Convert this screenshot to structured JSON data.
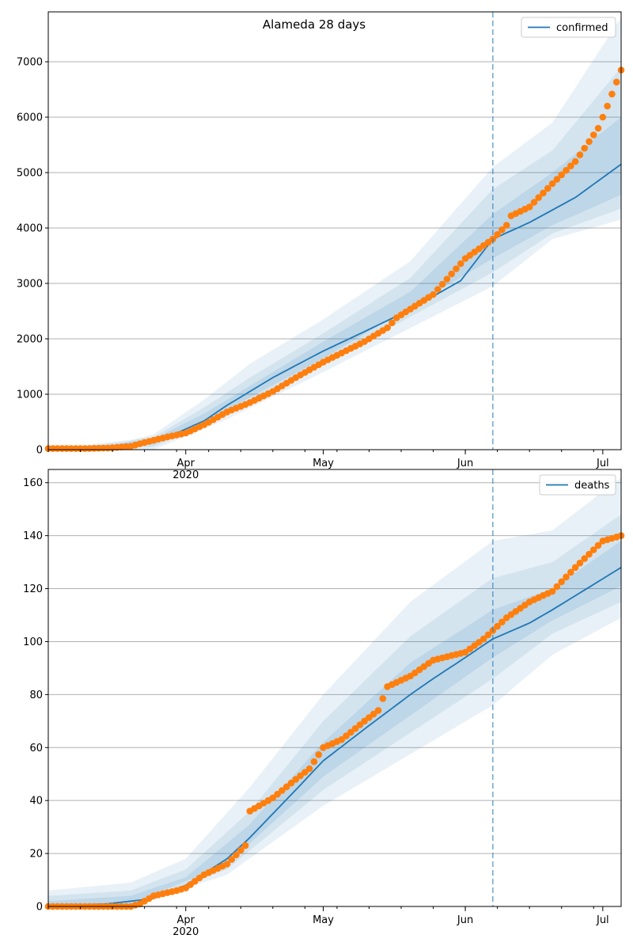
{
  "colors": {
    "band": "#1f77b4",
    "line": "#1f77b4",
    "points": "#ff7f0e",
    "vline": "#1f77b4",
    "grid": "#b0b0b0"
  },
  "chart_data": [
    {
      "type": "line",
      "title": "Alameda 28 days",
      "legend": {
        "label": "confirmed",
        "placement": "top-right"
      },
      "xlabel": "",
      "ylabel": "",
      "grid": "y",
      "xlim": [
        "2020-03-02",
        "2020-07-05"
      ],
      "ylim": [
        0,
        7900
      ],
      "yticks": [
        0,
        1000,
        2000,
        3000,
        4000,
        5000,
        6000,
        7000
      ],
      "xticks": [
        {
          "date": "2020-04-01",
          "label": "Apr",
          "sublabel": "2020"
        },
        {
          "date": "2020-05-01",
          "label": "May",
          "sublabel": ""
        },
        {
          "date": "2020-06-01",
          "label": "Jun",
          "sublabel": ""
        },
        {
          "date": "2020-07-01",
          "label": "Jul",
          "sublabel": ""
        }
      ],
      "vline_date": "2020-06-07",
      "series": [
        {
          "name": "confirmed",
          "kind": "model-median",
          "points": [
            [
              "2020-03-02",
              0
            ],
            [
              "2020-03-15",
              10
            ],
            [
              "2020-03-20",
              50
            ],
            [
              "2020-03-25",
              150
            ],
            [
              "2020-03-30",
              300
            ],
            [
              "2020-04-05",
              520
            ],
            [
              "2020-04-10",
              800
            ],
            [
              "2020-04-15",
              1050
            ],
            [
              "2020-04-20",
              1300
            ],
            [
              "2020-04-25",
              1520
            ],
            [
              "2020-05-01",
              1780
            ],
            [
              "2020-05-10",
              2130
            ],
            [
              "2020-05-20",
              2530
            ],
            [
              "2020-05-31",
              3050
            ],
            [
              "2020-06-07",
              3800
            ],
            [
              "2020-06-15",
              4100
            ],
            [
              "2020-06-25",
              4550
            ],
            [
              "2020-07-05",
              5150
            ]
          ]
        },
        {
          "name": "observed",
          "kind": "observed",
          "points": [
            [
              "2020-03-02",
              20
            ],
            [
              "2020-03-10",
              20
            ],
            [
              "2020-03-15",
              30
            ],
            [
              "2020-03-20",
              60
            ],
            [
              "2020-03-23",
              130
            ],
            [
              "2020-03-28",
              230
            ],
            [
              "2020-04-01",
              300
            ],
            [
              "2020-04-05",
              450
            ],
            [
              "2020-04-10",
              680
            ],
            [
              "2020-04-15",
              850
            ],
            [
              "2020-04-20",
              1050
            ],
            [
              "2020-04-25",
              1300
            ],
            [
              "2020-05-01",
              1580
            ],
            [
              "2020-05-10",
              1950
            ],
            [
              "2020-05-15",
              2200
            ],
            [
              "2020-05-17",
              2380
            ],
            [
              "2020-05-25",
              2800
            ],
            [
              "2020-06-01",
              3450
            ],
            [
              "2020-06-07",
              3800
            ],
            [
              "2020-06-10",
              4050
            ],
            [
              "2020-06-11",
              4220
            ],
            [
              "2020-06-15",
              4380
            ],
            [
              "2020-06-20",
              4800
            ],
            [
              "2020-06-25",
              5200
            ],
            [
              "2020-06-30",
              5800
            ],
            [
              "2020-07-02",
              6200
            ],
            [
              "2020-07-05",
              6850
            ]
          ]
        }
      ],
      "bands": [
        {
          "level": "outer",
          "lower": [
            [
              "2020-03-02",
              0
            ],
            [
              "2020-03-25",
              0
            ],
            [
              "2020-04-10",
              550
            ],
            [
              "2020-05-01",
              1400
            ],
            [
              "2020-06-07",
              2950
            ],
            [
              "2020-06-20",
              3800
            ],
            [
              "2020-07-05",
              4150
            ]
          ],
          "upper": [
            [
              "2020-03-02",
              0
            ],
            [
              "2020-03-15",
              40
            ],
            [
              "2020-03-25",
              280
            ],
            [
              "2020-04-05",
              900
            ],
            [
              "2020-04-15",
              1550
            ],
            [
              "2020-05-01",
              2350
            ],
            [
              "2020-05-20",
              3400
            ],
            [
              "2020-06-07",
              5100
            ],
            [
              "2020-06-20",
              5900
            ],
            [
              "2020-07-05",
              7800
            ]
          ]
        },
        {
          "level": "middle",
          "lower": [
            [
              "2020-03-02",
              0
            ],
            [
              "2020-03-25",
              50
            ],
            [
              "2020-04-10",
              650
            ],
            [
              "2020-05-01",
              1550
            ],
            [
              "2020-06-07",
              3200
            ],
            [
              "2020-06-20",
              3900
            ],
            [
              "2020-07-05",
              4350
            ]
          ],
          "upper": [
            [
              "2020-03-02",
              0
            ],
            [
              "2020-03-25",
              230
            ],
            [
              "2020-04-05",
              760
            ],
            [
              "2020-04-15",
              1300
            ],
            [
              "2020-05-01",
              2100
            ],
            [
              "2020-05-20",
              3100
            ],
            [
              "2020-06-07",
              4700
            ],
            [
              "2020-06-20",
              5400
            ],
            [
              "2020-07-05",
              6900
            ]
          ]
        },
        {
          "level": "inner",
          "lower": [
            [
              "2020-03-02",
              0
            ],
            [
              "2020-03-25",
              90
            ],
            [
              "2020-04-10",
              720
            ],
            [
              "2020-05-01",
              1650
            ],
            [
              "2020-06-07",
              3450
            ],
            [
              "2020-06-20",
              4050
            ],
            [
              "2020-07-05",
              4600
            ]
          ],
          "upper": [
            [
              "2020-03-02",
              0
            ],
            [
              "2020-03-25",
              190
            ],
            [
              "2020-04-05",
              650
            ],
            [
              "2020-04-15",
              1150
            ],
            [
              "2020-05-01",
              1950
            ],
            [
              "2020-05-20",
              2850
            ],
            [
              "2020-06-07",
              4250
            ],
            [
              "2020-06-20",
              5000
            ],
            [
              "2020-07-05",
              6000
            ]
          ]
        }
      ]
    },
    {
      "type": "line",
      "title": "",
      "legend": {
        "label": "deaths",
        "placement": "top-right"
      },
      "xlabel": "",
      "ylabel": "",
      "grid": "y",
      "xlim": [
        "2020-03-02",
        "2020-07-05"
      ],
      "ylim": [
        0,
        165
      ],
      "yticks": [
        0,
        20,
        40,
        60,
        80,
        100,
        120,
        140,
        160
      ],
      "xticks": [
        {
          "date": "2020-04-01",
          "label": "Apr",
          "sublabel": "2020"
        },
        {
          "date": "2020-05-01",
          "label": "May",
          "sublabel": ""
        },
        {
          "date": "2020-06-01",
          "label": "Jun",
          "sublabel": ""
        },
        {
          "date": "2020-07-01",
          "label": "Jul",
          "sublabel": ""
        }
      ],
      "vline_date": "2020-06-07",
      "series": [
        {
          "name": "deaths",
          "kind": "model-median",
          "points": [
            [
              "2020-03-02",
              0
            ],
            [
              "2020-03-15",
              1
            ],
            [
              "2020-03-20",
              2
            ],
            [
              "2020-03-25",
              3
            ],
            [
              "2020-04-01",
              8
            ],
            [
              "2020-04-10",
              18
            ],
            [
              "2020-04-15",
              26
            ],
            [
              "2020-04-20",
              35
            ],
            [
              "2020-04-25",
              44
            ],
            [
              "2020-05-01",
              55
            ],
            [
              "2020-05-10",
              67
            ],
            [
              "2020-05-20",
              80
            ],
            [
              "2020-05-25",
              86
            ],
            [
              "2020-06-01",
              94
            ],
            [
              "2020-06-07",
              101
            ],
            [
              "2020-06-15",
              107
            ],
            [
              "2020-06-20",
              112
            ],
            [
              "2020-07-05",
              128
            ]
          ]
        },
        {
          "name": "observed",
          "kind": "observed",
          "points": [
            [
              "2020-03-02",
              0
            ],
            [
              "2020-03-20",
              0
            ],
            [
              "2020-03-22",
              1
            ],
            [
              "2020-03-25",
              4
            ],
            [
              "2020-03-30",
              6
            ],
            [
              "2020-04-01",
              7
            ],
            [
              "2020-04-05",
              12
            ],
            [
              "2020-04-10",
              16
            ],
            [
              "2020-04-14",
              23
            ],
            [
              "2020-04-15",
              36
            ],
            [
              "2020-04-20",
              41
            ],
            [
              "2020-04-25",
              48
            ],
            [
              "2020-04-28",
              52
            ],
            [
              "2020-05-01",
              60
            ],
            [
              "2020-05-05",
              63
            ],
            [
              "2020-05-10",
              70
            ],
            [
              "2020-05-13",
              74
            ],
            [
              "2020-05-15",
              83
            ],
            [
              "2020-05-20",
              87
            ],
            [
              "2020-05-25",
              93
            ],
            [
              "2020-06-01",
              96
            ],
            [
              "2020-06-05",
              101
            ],
            [
              "2020-06-10",
              109
            ],
            [
              "2020-06-15",
              115
            ],
            [
              "2020-06-20",
              119
            ],
            [
              "2020-06-25",
              128
            ],
            [
              "2020-07-01",
              138
            ],
            [
              "2020-07-05",
              140
            ]
          ]
        }
      ],
      "bands": [
        {
          "level": "outer",
          "lower": [
            [
              "2020-03-02",
              0
            ],
            [
              "2020-03-20",
              0
            ],
            [
              "2020-04-10",
              12
            ],
            [
              "2020-05-01",
              38
            ],
            [
              "2020-06-07",
              76
            ],
            [
              "2020-06-20",
              95
            ],
            [
              "2020-07-05",
              109
            ]
          ],
          "upper": [
            [
              "2020-03-02",
              6
            ],
            [
              "2020-03-20",
              9
            ],
            [
              "2020-04-01",
              18
            ],
            [
              "2020-04-15",
              45
            ],
            [
              "2020-05-01",
              80
            ],
            [
              "2020-05-20",
              115
            ],
            [
              "2020-06-07",
              138
            ],
            [
              "2020-06-20",
              142
            ],
            [
              "2020-07-05",
              162
            ]
          ]
        },
        {
          "level": "middle",
          "lower": [
            [
              "2020-03-02",
              0
            ],
            [
              "2020-03-20",
              0
            ],
            [
              "2020-04-10",
              14
            ],
            [
              "2020-05-01",
              44
            ],
            [
              "2020-06-07",
              86
            ],
            [
              "2020-06-20",
              103
            ],
            [
              "2020-07-05",
              115
            ]
          ],
          "upper": [
            [
              "2020-03-02",
              4
            ],
            [
              "2020-03-20",
              6
            ],
            [
              "2020-04-01",
              14
            ],
            [
              "2020-04-15",
              36
            ],
            [
              "2020-05-01",
              70
            ],
            [
              "2020-05-20",
              102
            ],
            [
              "2020-06-07",
              124
            ],
            [
              "2020-06-20",
              130
            ],
            [
              "2020-07-05",
              148
            ]
          ]
        },
        {
          "level": "inner",
          "lower": [
            [
              "2020-03-02",
              0
            ],
            [
              "2020-03-20",
              1
            ],
            [
              "2020-04-10",
              16
            ],
            [
              "2020-05-01",
              49
            ],
            [
              "2020-06-07",
              94
            ],
            [
              "2020-06-20",
              108
            ],
            [
              "2020-07-05",
              121
            ]
          ],
          "upper": [
            [
              "2020-03-02",
              2
            ],
            [
              "2020-03-20",
              4
            ],
            [
              "2020-04-01",
              11
            ],
            [
              "2020-04-15",
              31
            ],
            [
              "2020-05-01",
              62
            ],
            [
              "2020-05-20",
              92
            ],
            [
              "2020-06-07",
              112
            ],
            [
              "2020-06-20",
              120
            ],
            [
              "2020-07-05",
              138
            ]
          ]
        }
      ]
    }
  ]
}
